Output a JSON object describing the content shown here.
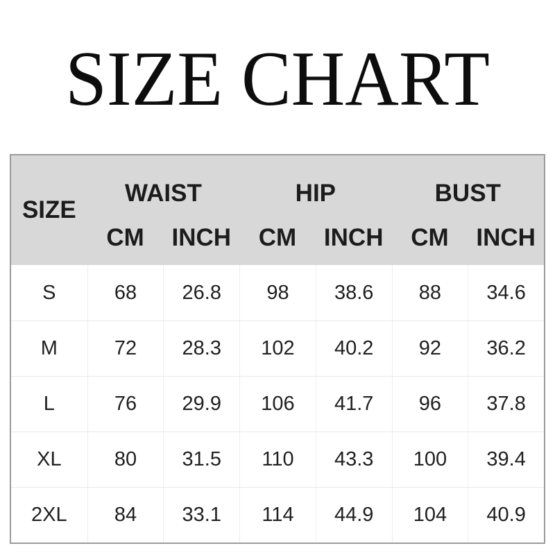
{
  "title": "SIZE CHART",
  "table": {
    "corner_label": "SIZE",
    "group_headers": [
      "WAIST",
      "HIP",
      "BUST"
    ],
    "unit_headers": [
      "CM",
      "INCH",
      "CM",
      "INCH",
      "CM",
      "INCH"
    ],
    "rows": [
      {
        "size": "S",
        "values": [
          "68",
          "26.8",
          "98",
          "38.6",
          "88",
          "34.6"
        ]
      },
      {
        "size": "M",
        "values": [
          "72",
          "28.3",
          "102",
          "40.2",
          "92",
          "36.2"
        ]
      },
      {
        "size": "L",
        "values": [
          "76",
          "29.9",
          "106",
          "41.7",
          "96",
          "37.8"
        ]
      },
      {
        "size": "XL",
        "values": [
          "80",
          "31.5",
          "110",
          "43.3",
          "100",
          "39.4"
        ]
      },
      {
        "size": "2XL",
        "values": [
          "84",
          "33.1",
          "114",
          "44.9",
          "104",
          "40.9"
        ]
      }
    ]
  },
  "colors": {
    "header_bg": "#d8d8d8",
    "table_border": "#9b9b9b",
    "cell_divider": "#e9e9e9",
    "title_text": "#0d0d0d",
    "body_text": "#1f1f1f"
  },
  "chart_data": {
    "type": "table",
    "title": "SIZE CHART",
    "columns": [
      "SIZE",
      "WAIST CM",
      "WAIST INCH",
      "HIP CM",
      "HIP INCH",
      "BUST CM",
      "BUST INCH"
    ],
    "rows": [
      [
        "S",
        68,
        26.8,
        98,
        38.6,
        88,
        34.6
      ],
      [
        "M",
        72,
        28.3,
        102,
        40.2,
        92,
        36.2
      ],
      [
        "L",
        76,
        29.9,
        106,
        41.7,
        96,
        37.8
      ],
      [
        "XL",
        80,
        31.5,
        110,
        43.3,
        100,
        39.4
      ],
      [
        "2XL",
        84,
        33.1,
        114,
        44.9,
        104,
        40.9
      ]
    ]
  }
}
